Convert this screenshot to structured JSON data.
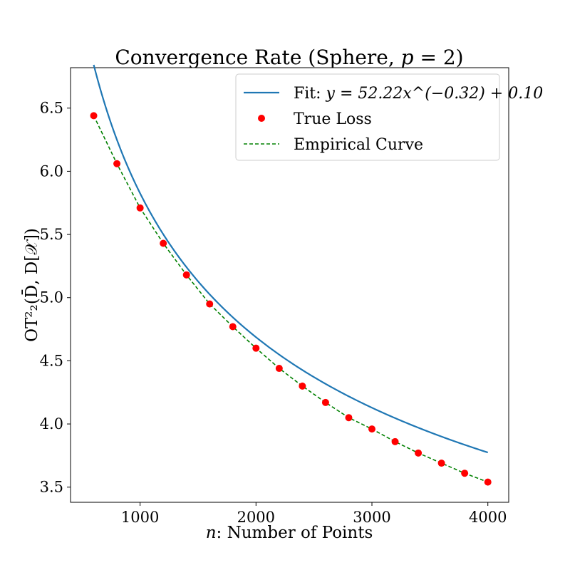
{
  "chart_data": {
    "type": "line",
    "title_prefix": "Convergence Rate (Sphere, ",
    "title_var": "p",
    "title_suffix": " = 2)",
    "xlabel_var": "n",
    "xlabel_text": ": Number of Points",
    "ylabel": "OT²₂(D̄, D[𝒳])",
    "xlim": [
      400,
      4180
    ],
    "ylim": [
      3.38,
      6.82
    ],
    "xticks": [
      1000,
      2000,
      3000,
      4000
    ],
    "yticks": [
      3.5,
      4.0,
      4.5,
      5.0,
      5.5,
      6.0,
      6.5
    ],
    "ytick_labels": [
      "3.5",
      "4.0",
      "4.5",
      "5.0",
      "5.5",
      "6.0",
      "6.5"
    ],
    "grid": false,
    "legend_position": "top-right",
    "fit": {
      "a": 52.22,
      "b": -0.32,
      "c": 0.1,
      "x_range": [
        600,
        4000
      ]
    },
    "series": [
      {
        "name": "Fit",
        "legend_prefix": "Fit: ",
        "legend_formula": "y = 52.22x^(−0.32) + 0.10",
        "kind": "line",
        "color": "#1f77b4"
      },
      {
        "name": "True Loss",
        "legend_label": "True Loss",
        "kind": "scatter",
        "color": "#ff0000",
        "x": [
          600,
          800,
          1000,
          1200,
          1400,
          1600,
          1800,
          2000,
          2200,
          2400,
          2600,
          2800,
          3000,
          3200,
          3400,
          3600,
          3800,
          4000
        ],
        "y": [
          6.44,
          6.06,
          5.71,
          5.43,
          5.18,
          4.95,
          4.77,
          4.6,
          4.44,
          4.3,
          4.17,
          4.05,
          3.96,
          3.86,
          3.77,
          3.69,
          3.61,
          3.54
        ]
      },
      {
        "name": "Empirical Curve",
        "legend_label": "Empirical Curve",
        "kind": "dashed-line",
        "color": "#008000"
      }
    ]
  }
}
